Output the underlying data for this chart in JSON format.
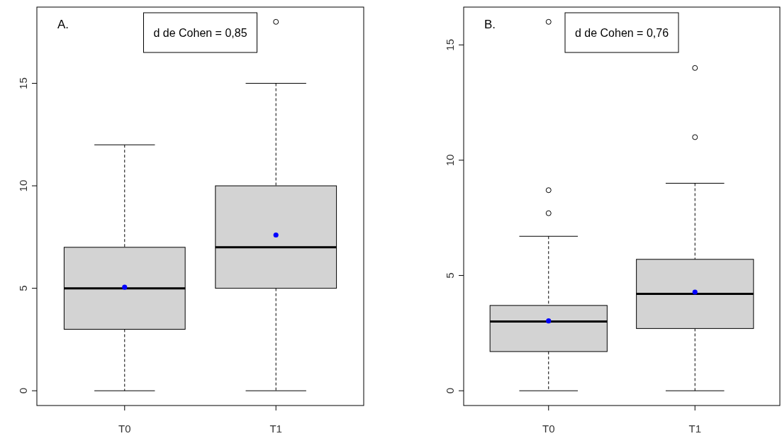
{
  "chart_data": [
    {
      "type": "box",
      "categories": [
        "T0",
        "T1"
      ],
      "ylim": [
        -0.72,
        18.72
      ],
      "yticks": [
        0,
        5,
        10,
        15
      ],
      "grid": false,
      "marker": "circle",
      "annotations": [
        "A.",
        "d de Cohen = 0,85"
      ],
      "series": [
        {
          "type": "box",
          "color": "#d3d3d3",
          "boxes": [
            {
              "low": 0,
              "q1": 3,
              "median": 5,
              "q3": 7,
              "high": 12
            },
            {
              "low": 0,
              "q1": 5,
              "median": 7,
              "q3": 10,
              "high": 15,
              "outliers": [
                18
              ]
            }
          ]
        },
        {
          "type": "scatter",
          "color": "#0000ff",
          "x": [
            "T0",
            "T1"
          ],
          "values": [
            5.05,
            7.6
          ]
        }
      ]
    },
    {
      "type": "box",
      "categories": [
        "T0",
        "T1"
      ],
      "ylim": [
        -0.64,
        16.64
      ],
      "yticks": [
        0,
        5,
        10,
        15
      ],
      "grid": false,
      "marker": "circle",
      "annotations": [
        "B.",
        "d de Cohen = 0,76"
      ],
      "series": [
        {
          "type": "box",
          "color": "#d3d3d3",
          "boxes": [
            {
              "low": 0,
              "q1": 1.7,
              "median": 3,
              "q3": 3.7,
              "high": 6.7,
              "outliers": [
                7.7,
                8.7,
                16
              ]
            },
            {
              "low": 0,
              "q1": 2.7,
              "median": 4.2,
              "q3": 5.7,
              "high": 9,
              "outliers": [
                11,
                14
              ]
            }
          ]
        },
        {
          "type": "scatter",
          "color": "#0000ff",
          "x": [
            "T0",
            "T1"
          ],
          "values": [
            3.03,
            4.28
          ]
        }
      ]
    }
  ]
}
